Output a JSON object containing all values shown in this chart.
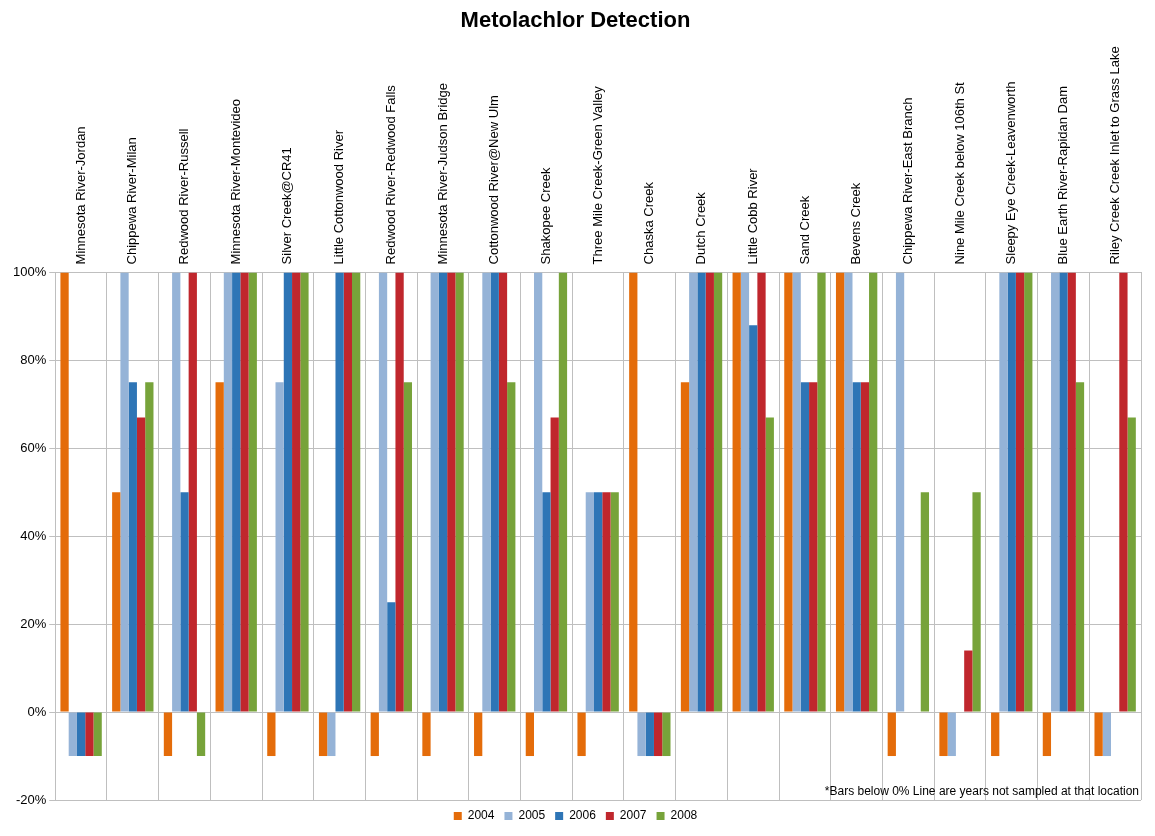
{
  "chart_data": {
    "type": "bar",
    "title": "Metolachlor Detection",
    "categories": [
      "Minnesota River-Jordan",
      "Chippewa River-Milan",
      "Redwood River-Russell",
      "Minnesota River-Montevideo",
      "Silver Creek@CR41",
      "Little Cottonwood River",
      "Redwood River-Redwood Falls",
      "Minnesota River-Judson Bridge",
      "Cottonwood River@New Ulm",
      "Shakopee Creek",
      "Three Mile Creek-Green Valley",
      "Chaska Creek",
      "Dutch Creek",
      "Little Cobb River",
      "Sand Creek",
      "Bevens Creek",
      "Chippewa River-East Branch",
      "Nine Mile Creek below 106th St",
      "Sleepy Eye Creek-Leavenworth",
      "Blue Earth River-Rapidan Dam",
      "Riley Creek Creek Inlet to Grass Lake"
    ],
    "series": [
      {
        "name": "2004",
        "color": "#e46c0a",
        "values": [
          100,
          50,
          -10,
          75,
          -10,
          -10,
          -10,
          -10,
          -10,
          -10,
          -10,
          100,
          75,
          100,
          100,
          100,
          -10,
          -10,
          -10,
          -10,
          -10
        ]
      },
      {
        "name": "2005",
        "color": "#95b3d7",
        "values": [
          -10,
          100,
          100,
          100,
          75,
          -10,
          100,
          100,
          100,
          100,
          50,
          -10,
          100,
          100,
          100,
          100,
          100,
          -10,
          100,
          100,
          -10
        ]
      },
      {
        "name": "2006",
        "color": "#2e75b6",
        "values": [
          -10,
          75,
          50,
          100,
          100,
          100,
          25,
          100,
          100,
          50,
          50,
          -10,
          100,
          88,
          75,
          75,
          0,
          0,
          100,
          100,
          0
        ]
      },
      {
        "name": "2007",
        "color": "#c0272d",
        "values": [
          -10,
          67,
          100,
          100,
          100,
          100,
          100,
          100,
          100,
          67,
          50,
          -10,
          100,
          100,
          75,
          75,
          0,
          14,
          100,
          100,
          100
        ]
      },
      {
        "name": "2008",
        "color": "#77a33a",
        "values": [
          -10,
          75,
          -10,
          100,
          100,
          100,
          75,
          100,
          75,
          100,
          50,
          -10,
          100,
          67,
          100,
          100,
          50,
          50,
          100,
          75,
          67
        ]
      }
    ],
    "ylim": [
      -20,
      100
    ],
    "yticks": [
      {
        "value": -20,
        "label": "-20%"
      },
      {
        "value": 0,
        "label": "0%"
      },
      {
        "value": 20,
        "label": "20%"
      },
      {
        "value": 40,
        "label": "40%"
      },
      {
        "value": 60,
        "label": "60%"
      },
      {
        "value": 80,
        "label": "80%"
      },
      {
        "value": 100,
        "label": "100%"
      }
    ],
    "grid": true,
    "legend": "bottom",
    "annotations": [
      "*Bars below 0% Line are years not sampled at that location"
    ]
  }
}
